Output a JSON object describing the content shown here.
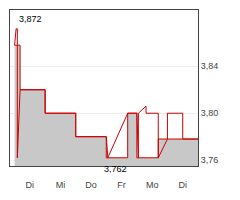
{
  "chart_data": {
    "type": "line",
    "grid": true,
    "xlim": [
      -0.15,
      6.0
    ],
    "xticks": [
      {
        "value": 0.5,
        "label": "Di"
      },
      {
        "value": 1.5,
        "label": "Mi"
      },
      {
        "value": 2.5,
        "label": "Do"
      },
      {
        "value": 3.5,
        "label": "Fr"
      },
      {
        "value": 4.5,
        "label": "Mo"
      },
      {
        "value": 5.5,
        "label": "Di"
      }
    ],
    "ylim": [
      3.755,
      3.888
    ],
    "yticks": [
      {
        "value": 3.76,
        "label": "3,76"
      },
      {
        "value": 3.8,
        "label": "3,80"
      },
      {
        "value": 3.84,
        "label": "3,84"
      }
    ],
    "series": [
      {
        "type": "area",
        "color": "#c8c8c8",
        "x": [
          0.0,
          0.18,
          0.18,
          1.0,
          1.0,
          2.0,
          2.0,
          3.0,
          3.0,
          3.7,
          3.7,
          4.0,
          4.0,
          4.7,
          4.7,
          6.0
        ],
        "values": [
          3.858,
          3.858,
          3.82,
          3.82,
          3.8,
          3.8,
          3.78,
          3.78,
          3.762,
          3.762,
          3.8,
          3.8,
          3.762,
          3.762,
          3.778,
          3.778
        ]
      },
      {
        "type": "line",
        "color": "#cc0000",
        "x": [
          0.0,
          0.05,
          0.09,
          0.09,
          0.18,
          0.18,
          0.5,
          0.5,
          1.0,
          1.0,
          1.5,
          1.5,
          2.0,
          2.0,
          2.5,
          2.5,
          3.0,
          3.05,
          3.05,
          3.7,
          3.7,
          4.0,
          4.05,
          4.05,
          4.3,
          4.3,
          4.7,
          4.7,
          5.0,
          5.0,
          5.5,
          5.5,
          6.0
        ],
        "values": [
          3.858,
          3.872,
          3.872,
          3.762,
          3.82,
          3.82,
          3.82,
          3.82,
          3.82,
          3.8,
          3.8,
          3.8,
          3.8,
          3.78,
          3.78,
          3.78,
          3.78,
          3.762,
          3.762,
          3.8,
          3.8,
          3.8,
          3.762,
          3.8,
          3.806,
          3.8,
          3.8,
          3.762,
          3.778,
          3.8,
          3.8,
          3.778,
          3.778
        ]
      }
    ],
    "annotations": [
      {
        "text": "3,872",
        "x": 0.08,
        "y": 3.874,
        "position": "above"
      },
      {
        "text": "3,762",
        "x": 2.85,
        "y": 3.758,
        "position": "below"
      }
    ]
  }
}
